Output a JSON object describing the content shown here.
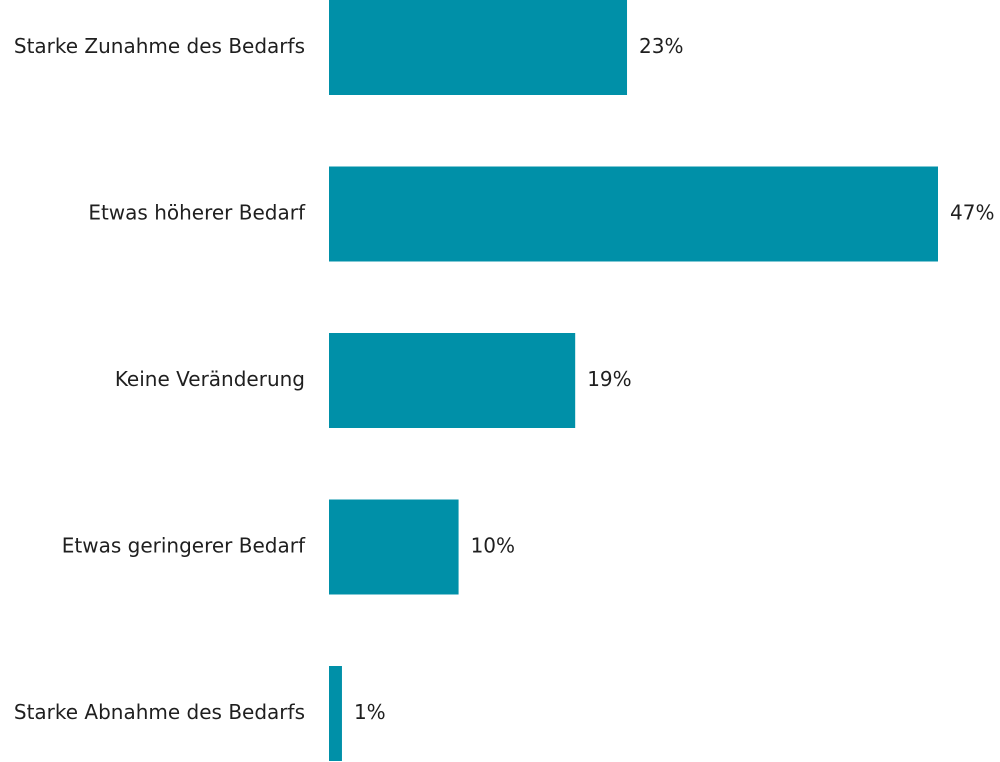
{
  "chart_data": {
    "type": "bar",
    "orientation": "horizontal",
    "categories": [
      "Starke Zunahme des Bedarfs",
      "Etwas höherer Bedarf",
      "Keine Veränderung",
      "Etwas geringerer Bedarf",
      "Starke Abnahme des Bedarfs"
    ],
    "values": [
      23,
      47,
      19,
      10,
      1
    ],
    "value_labels": [
      "23%",
      "47%",
      "19%",
      "10%",
      "1%"
    ],
    "unit": "%",
    "xlim": [
      0,
      47
    ],
    "grid": false,
    "legend": "none",
    "bar_color": "#0090a8",
    "title": "",
    "xlabel": "",
    "ylabel": ""
  }
}
